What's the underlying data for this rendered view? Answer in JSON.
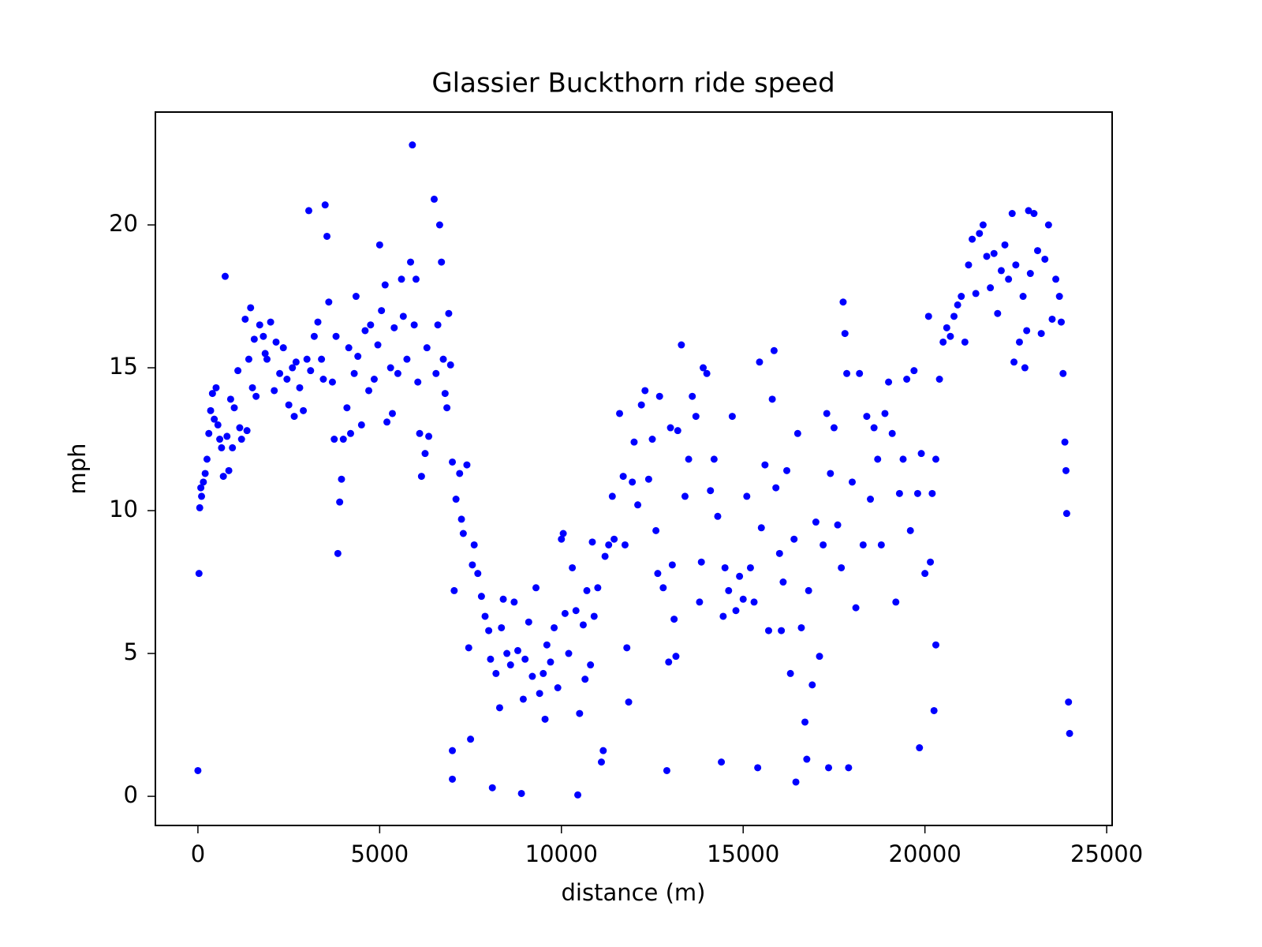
{
  "chart_data": {
    "type": "scatter",
    "title": "Glassier Buckthorn ride speed",
    "x_label": "distance (m)",
    "y_label": "mph",
    "xlim": [
      -1170,
      25150
    ],
    "ylim": [
      -1.02,
      23.95
    ],
    "xticks": [
      0,
      5000,
      10000,
      15000,
      20000,
      25000
    ],
    "yticks": [
      0,
      5,
      10,
      15,
      20
    ],
    "series": [
      {
        "color": "#0000ff",
        "x": [
          0,
          30,
          50,
          80,
          100,
          150,
          200,
          250,
          300,
          350,
          400,
          450,
          500,
          550,
          600,
          650,
          700,
          750,
          800,
          850,
          900,
          950,
          1000,
          1100,
          1150,
          1200,
          1300,
          1350,
          1400,
          1450,
          1500,
          1550,
          1600,
          1700,
          1800,
          1850,
          1900,
          2000,
          2100,
          2150,
          2250,
          2350,
          2450,
          2500,
          2600,
          2650,
          2700,
          2800,
          2900,
          3000,
          3050,
          3100,
          3200,
          3300,
          3400,
          3450,
          3500,
          3550,
          3600,
          3700,
          3750,
          3800,
          3850,
          3900,
          3950,
          4000,
          4100,
          4150,
          4200,
          4300,
          4350,
          4400,
          4500,
          4600,
          4700,
          4750,
          4850,
          4950,
          5000,
          5050,
          5150,
          5200,
          5300,
          5350,
          5400,
          5500,
          5600,
          5650,
          5750,
          5850,
          5900,
          5950,
          6000,
          6050,
          6100,
          6150,
          6250,
          6300,
          6350,
          6500,
          6550,
          6600,
          6650,
          6700,
          6750,
          6800,
          6850,
          6900,
          6950,
          7000,
          7050,
          7000,
          7000,
          7100,
          7200,
          7250,
          7300,
          7400,
          7450,
          7500,
          7550,
          7600,
          7700,
          7800,
          7900,
          8000,
          8050,
          8100,
          8200,
          8300,
          8350,
          8400,
          8500,
          8600,
          8700,
          8800,
          8900,
          8950,
          9000,
          9100,
          9200,
          9300,
          9400,
          9500,
          9550,
          9600,
          9700,
          9800,
          9900,
          10000,
          10050,
          10100,
          10200,
          10300,
          10400,
          10450,
          10500,
          10600,
          10650,
          10700,
          10800,
          10850,
          10900,
          11000,
          11100,
          11150,
          11200,
          11300,
          11400,
          11450,
          11600,
          11700,
          11750,
          11800,
          11850,
          11950,
          12000,
          12100,
          12200,
          12300,
          12400,
          12500,
          12600,
          12650,
          12700,
          12800,
          12900,
          12950,
          13000,
          13050,
          13100,
          13150,
          13200,
          13300,
          13400,
          13500,
          13600,
          13700,
          13800,
          13850,
          13900,
          14000,
          14100,
          14200,
          14300,
          14400,
          14450,
          14500,
          14600,
          14700,
          14800,
          14900,
          15000,
          15100,
          15200,
          15300,
          15400,
          15450,
          15500,
          15600,
          15700,
          15800,
          15850,
          15900,
          16000,
          16050,
          16100,
          16200,
          16300,
          16400,
          16450,
          16500,
          16600,
          16700,
          16750,
          16800,
          16900,
          17000,
          17100,
          17200,
          17300,
          17350,
          17400,
          17500,
          17600,
          17700,
          17750,
          17800,
          17850,
          17900,
          18000,
          18100,
          18200,
          18300,
          18400,
          18500,
          18600,
          18700,
          18800,
          18900,
          19000,
          19100,
          19200,
          19300,
          19400,
          19500,
          19600,
          19700,
          19800,
          19850,
          19900,
          20000,
          20100,
          20150,
          20200,
          20300,
          20300,
          20250,
          20400,
          20500,
          20600,
          20700,
          20800,
          20900,
          21000,
          21100,
          21200,
          21300,
          21400,
          21500,
          21600,
          21700,
          21800,
          21900,
          22000,
          22100,
          22200,
          22300,
          22400,
          22450,
          22500,
          22600,
          22700,
          22750,
          22800,
          22850,
          22900,
          23000,
          23100,
          23200,
          23300,
          23400,
          23500,
          23600,
          23700,
          23750,
          23800,
          23850,
          23880,
          23900,
          23950,
          23980
        ],
        "values": [
          0.9,
          7.8,
          10.1,
          10.8,
          10.5,
          11,
          11.3,
          11.8,
          12.7,
          13.5,
          14.1,
          13.2,
          14.3,
          13,
          12.5,
          12.2,
          11.2,
          18.2,
          12.6,
          11.4,
          13.9,
          12.2,
          13.6,
          14.9,
          12.9,
          12.5,
          16.7,
          12.8,
          15.3,
          17.1,
          14.3,
          16,
          14,
          16.5,
          16.1,
          15.5,
          15.3,
          16.6,
          14.2,
          15.9,
          14.8,
          15.7,
          14.6,
          13.7,
          15,
          13.3,
          15.2,
          14.3,
          13.5,
          15.3,
          20.5,
          14.9,
          16.1,
          16.6,
          15.3,
          14.6,
          20.7,
          19.6,
          17.3,
          14.5,
          12.5,
          16.1,
          8.5,
          10.3,
          11.1,
          12.5,
          13.6,
          15.7,
          12.7,
          14.8,
          17.5,
          15.4,
          13,
          16.3,
          14.2,
          16.5,
          14.6,
          15.8,
          19.3,
          17,
          17.9,
          13.1,
          15,
          13.4,
          16.4,
          14.8,
          18.1,
          16.8,
          15.3,
          18.7,
          22.8,
          16.5,
          18.1,
          14.5,
          12.7,
          11.2,
          12,
          15.7,
          12.6,
          20.9,
          14.8,
          16.5,
          20,
          18.7,
          15.3,
          14.1,
          13.6,
          16.9,
          15.1,
          11.7,
          7.2,
          1.6,
          0.6,
          10.4,
          11.3,
          9.7,
          9.2,
          11.6,
          5.2,
          2,
          8.1,
          8.8,
          7.8,
          7,
          6.3,
          5.8,
          4.8,
          0.3,
          4.3,
          3.1,
          5.9,
          6.9,
          5,
          4.6,
          6.8,
          5.1,
          0.1,
          3.4,
          4.8,
          6.1,
          4.2,
          7.3,
          3.6,
          4.3,
          2.7,
          5.3,
          4.7,
          5.9,
          3.8,
          9,
          9.2,
          6.4,
          5,
          8,
          6.5,
          0.05,
          2.9,
          6,
          4.1,
          7.2,
          4.6,
          8.9,
          6.3,
          7.3,
          1.2,
          1.6,
          8.4,
          8.8,
          10.5,
          9,
          13.4,
          11.2,
          8.8,
          5.2,
          3.3,
          11,
          12.4,
          10.2,
          13.7,
          14.2,
          11.1,
          12.5,
          9.3,
          7.8,
          14,
          7.3,
          0.9,
          4.7,
          12.9,
          8.1,
          6.2,
          4.9,
          12.8,
          15.8,
          10.5,
          11.8,
          14,
          13.3,
          6.8,
          8.2,
          15,
          14.8,
          10.7,
          11.8,
          9.8,
          1.2,
          6.3,
          8,
          7.2,
          13.3,
          6.5,
          7.7,
          6.9,
          10.5,
          8,
          6.8,
          1,
          15.2,
          9.4,
          11.6,
          5.8,
          13.9,
          15.6,
          10.8,
          8.5,
          5.8,
          7.5,
          11.4,
          4.3,
          9,
          0.5,
          12.7,
          5.9,
          2.6,
          1.3,
          7.2,
          3.9,
          9.6,
          4.9,
          8.8,
          13.4,
          1,
          11.3,
          12.9,
          9.5,
          8,
          17.3,
          16.2,
          14.8,
          1,
          11,
          6.6,
          14.8,
          8.8,
          13.3,
          10.4,
          12.9,
          11.8,
          8.8,
          13.4,
          14.5,
          12.7,
          6.8,
          10.6,
          11.8,
          14.6,
          9.3,
          14.9,
          10.6,
          1.7,
          12,
          7.8,
          16.8,
          8.2,
          10.6,
          11.8,
          5.3,
          3,
          14.6,
          15.9,
          16.4,
          16.1,
          16.8,
          17.2,
          17.5,
          15.9,
          18.6,
          19.5,
          17.6,
          19.7,
          20,
          18.9,
          17.8,
          19,
          16.9,
          18.4,
          19.3,
          18.1,
          20.4,
          15.2,
          18.6,
          15.9,
          17.5,
          15,
          16.3,
          20.5,
          18.3,
          20.4,
          19.1,
          16.2,
          18.8,
          20,
          16.7,
          18.1,
          17.5,
          16.6,
          14.8,
          12.4,
          11.4,
          9.9,
          3.3,
          2.2
        ]
      }
    ]
  }
}
